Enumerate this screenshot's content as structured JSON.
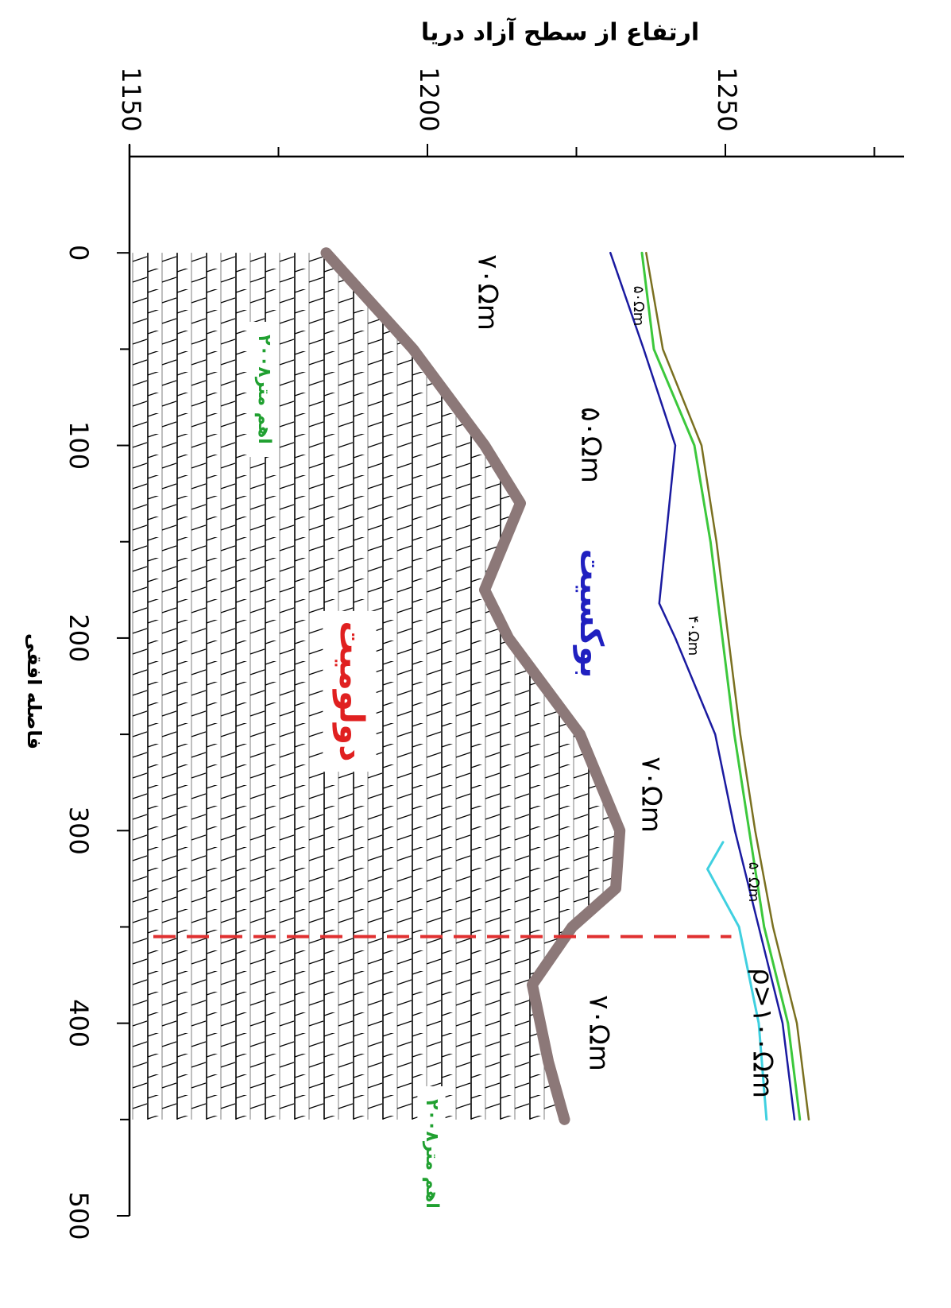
{
  "chart_data": {
    "type": "section",
    "title": "ارتفاع از سطح آزاد دریا",
    "xlabel": "فاصله افقی",
    "xlim": [
      -50,
      500
    ],
    "xticks": [
      0,
      100,
      200,
      300,
      400,
      500
    ],
    "xminorticks": [
      50,
      150,
      250,
      350,
      450
    ],
    "ylim": [
      1150,
      1280
    ],
    "yticks": [
      1150,
      1200,
      1250
    ],
    "yminorticks": [
      1175,
      1225,
      1275
    ],
    "series": [
      {
        "color": "#7a7020",
        "width": 2.5,
        "x": [
          0,
          50,
          100,
          150,
          200,
          250,
          300,
          350,
          400,
          450
        ],
        "values": [
          1236.7,
          1239.5,
          1246,
          1248.5,
          1250.5,
          1252.5,
          1255,
          1258,
          1262,
          1264
        ]
      },
      {
        "color": "#3cc83c",
        "width": 3,
        "x": [
          0,
          50,
          100,
          150,
          200,
          250,
          300,
          350,
          400,
          450
        ],
        "values": [
          1236,
          1238,
          1244.8,
          1247.5,
          1249.5,
          1251.5,
          1254,
          1256.5,
          1260.5,
          1262.5
        ]
      },
      {
        "color": "#1a1aa0",
        "width": 2.5,
        "x": [
          0,
          50,
          100,
          182,
          200,
          250,
          300,
          350,
          400,
          450
        ],
        "values": [
          1230.7,
          1236.3,
          1241.6,
          1238.9,
          1241.6,
          1248.3,
          1251.6,
          1255.6,
          1259.6,
          1261.6
        ]
      },
      {
        "color": "#40d0e0",
        "width": 3,
        "x": [
          306,
          320,
          350,
          400,
          450
        ],
        "values": [
          1249.6,
          1247,
          1252.3,
          1255.6,
          1256.9
        ]
      },
      {
        "color": "#8c7878",
        "width": 14,
        "x": [
          0,
          50,
          100,
          130,
          175,
          200,
          250,
          300,
          330,
          350,
          380,
          420,
          450
        ],
        "values": [
          1183,
          1197.6,
          1209.6,
          1215.6,
          1209.6,
          1213.6,
          1225.6,
          1232.3,
          1231.6,
          1224.3,
          1217.6,
          1220.3,
          1223
        ]
      }
    ],
    "dashed_line": {
      "color": "#e03030",
      "x": 355,
      "from": 1154,
      "to": 1251
    },
    "annotations": [
      {
        "text": "۷۰Ωm",
        "color": "#000000"
      },
      {
        "text": "۵۰Ωm",
        "color": "#000000"
      },
      {
        "text": "۷۰Ωm",
        "color": "#000000"
      },
      {
        "text": "۷۰Ωm",
        "color": "#000000"
      },
      {
        "text": "۵۰Ωm",
        "color": "#000000"
      },
      {
        "text": "۴۰Ωm",
        "color": "#000000"
      },
      {
        "text": "۵۰Ωm",
        "color": "#000000"
      },
      {
        "text": "ρ>۱۰۰Ωm",
        "color": "#000000"
      },
      {
        "text": "بوکسیت",
        "color": "#2020c0"
      },
      {
        "text": "دولومیت",
        "color": "#e02020"
      },
      {
        "text": "۲۰۰۸اهم متر",
        "color": "#20a030"
      },
      {
        "text": "۲۰۰۸اهم متر",
        "color": "#20a030"
      }
    ]
  }
}
